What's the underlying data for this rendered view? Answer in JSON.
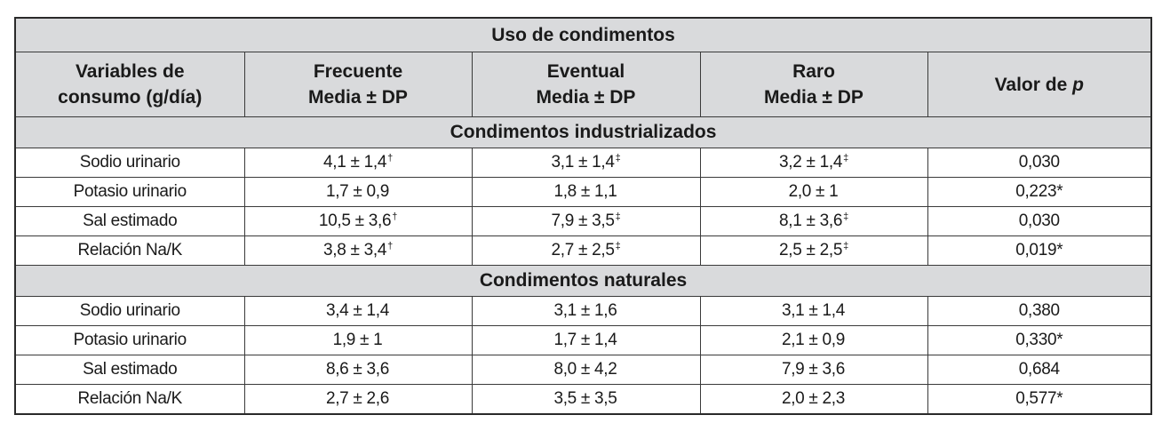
{
  "table": {
    "title": "Uso de condimentos",
    "columns": [
      {
        "line1": "Variables de",
        "line2": "consumo (g/día)"
      },
      {
        "line1": "Frecuente",
        "line2": "Media ± DP"
      },
      {
        "line1": "Eventual",
        "line2": "Media ± DP"
      },
      {
        "line1": "Raro",
        "line2": "Media ± DP"
      },
      {
        "line1": "Valor de ",
        "italic": "p"
      }
    ],
    "sections": [
      {
        "title": "Condimentos industrializados",
        "rows": [
          {
            "variable": "Sodio urinario",
            "frecuente": {
              "value": "4,1 ± 1,4",
              "mark": "†"
            },
            "eventual": {
              "value": "3,1 ± 1,4",
              "mark": "‡"
            },
            "raro": {
              "value": "3,2 ± 1,4",
              "mark": "‡"
            },
            "p": "0,030"
          },
          {
            "variable": "Potasio urinario",
            "frecuente": {
              "value": "1,7 ± 0,9",
              "mark": ""
            },
            "eventual": {
              "value": "1,8 ± 1,1",
              "mark": ""
            },
            "raro": {
              "value": "2,0 ± 1",
              "mark": ""
            },
            "p": "0,223*"
          },
          {
            "variable": "Sal estimado",
            "frecuente": {
              "value": "10,5 ± 3,6",
              "mark": "†"
            },
            "eventual": {
              "value": "7,9 ± 3,5",
              "mark": "‡"
            },
            "raro": {
              "value": "8,1 ± 3,6",
              "mark": "‡"
            },
            "p": "0,030"
          },
          {
            "variable": "Relación Na/K",
            "frecuente": {
              "value": "3,8 ± 3,4",
              "mark": "†"
            },
            "eventual": {
              "value": "2,7 ± 2,5",
              "mark": "‡"
            },
            "raro": {
              "value": "2,5 ± 2,5",
              "mark": "‡"
            },
            "p": "0,019*"
          }
        ]
      },
      {
        "title": "Condimentos naturales",
        "rows": [
          {
            "variable": "Sodio urinario",
            "frecuente": {
              "value": "3,4 ± 1,4",
              "mark": ""
            },
            "eventual": {
              "value": "3,1 ± 1,6",
              "mark": ""
            },
            "raro": {
              "value": "3,1 ± 1,4",
              "mark": ""
            },
            "p": "0,380"
          },
          {
            "variable": "Potasio urinario",
            "frecuente": {
              "value": "1,9 ± 1",
              "mark": ""
            },
            "eventual": {
              "value": "1,7 ± 1,4",
              "mark": ""
            },
            "raro": {
              "value": "2,1 ± 0,9",
              "mark": ""
            },
            "p": "0,330*"
          },
          {
            "variable": "Sal estimado",
            "frecuente": {
              "value": "8,6 ± 3,6",
              "mark": ""
            },
            "eventual": {
              "value": "8,0 ± 4,2",
              "mark": ""
            },
            "raro": {
              "value": "7,9 ± 3,6",
              "mark": ""
            },
            "p": "0,684"
          },
          {
            "variable": "Relación Na/K",
            "frecuente": {
              "value": "2,7 ± 2,6",
              "mark": ""
            },
            "eventual": {
              "value": "3,5 ± 3,5",
              "mark": ""
            },
            "raro": {
              "value": "2,0 ± 2,3",
              "mark": ""
            },
            "p": "0,577*"
          }
        ]
      }
    ]
  },
  "colors": {
    "header_bg": "#d9dadc",
    "border": "#3a3a3a",
    "text": "#1a1a1a"
  }
}
